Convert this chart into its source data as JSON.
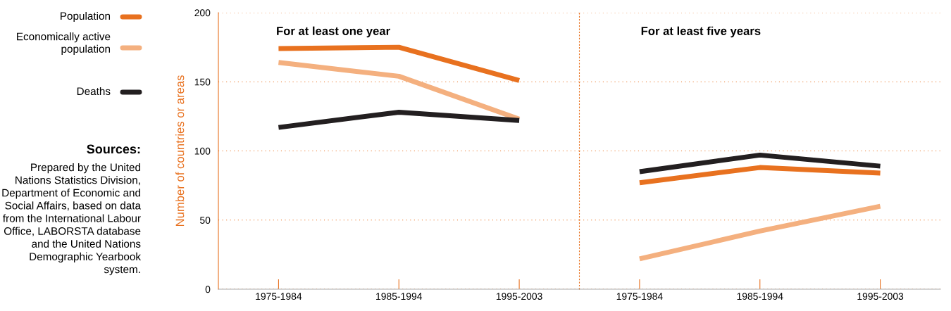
{
  "chart_data": [
    {
      "type": "line",
      "title": "For at least one year",
      "ylabel": "Number of countries or areas",
      "categories": [
        "1975-1984",
        "1985-1994",
        "1995-2003"
      ],
      "ylim": [
        0,
        200
      ],
      "yticks": [
        0,
        50,
        100,
        150,
        200
      ],
      "grid": "y",
      "legend": "left",
      "marker": "none",
      "line_style": "solid",
      "series": [
        {
          "name": "Population",
          "color": "#e8711f",
          "values": [
            174,
            175,
            151
          ]
        },
        {
          "name": "Economically active population",
          "color": "#f4b07f",
          "values": [
            164,
            154,
            123
          ]
        },
        {
          "name": "Deaths",
          "color": "#231f20",
          "values": [
            117,
            128,
            122
          ]
        }
      ],
      "annotations": [
        "Sources:",
        "Prepared by the United Nations Statistics Division, Department of Economic and Social Affairs, based on data from the International Labour Office, LABORSTA database and the United Nations Demographic Yearbook system."
      ]
    },
    {
      "type": "line",
      "title": "For at least five years",
      "categories": [
        "1975-1984",
        "1985-1994",
        "1995-2003"
      ],
      "ylim": [
        0,
        200
      ],
      "tick_labels": "x",
      "grid": "y",
      "marker": "none",
      "line_style": "solid",
      "series": [
        {
          "color": "#e8711f",
          "values": [
            77,
            88,
            84
          ]
        },
        {
          "color": "#f4b07f",
          "values": [
            22,
            42,
            60
          ]
        },
        {
          "color": "#231f20",
          "values": [
            85,
            97,
            89
          ]
        }
      ]
    }
  ]
}
